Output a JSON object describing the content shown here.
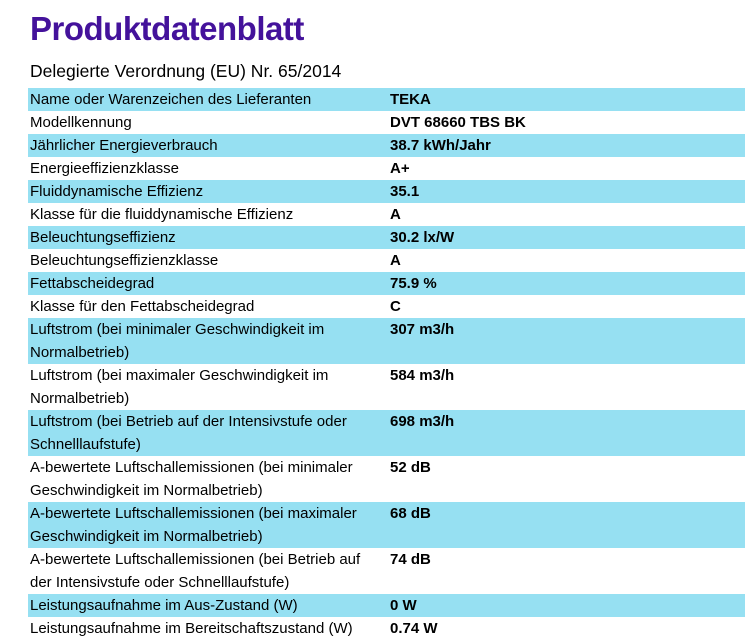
{
  "page": {
    "title": "Produktdatenblatt",
    "subtitle": "Delegierte Verordnung (EU) Nr. 65/2014",
    "title_color": "#44129B",
    "row_highlight_color": "#96E0F2"
  },
  "table": {
    "rows": [
      {
        "label": "Name oder Warenzeichen des Lieferanten",
        "value": "TEKA",
        "highlight": true
      },
      {
        "label": "Modellkennung",
        "value": "DVT 68660 TBS BK",
        "highlight": false
      },
      {
        "label": "Jährlicher Energieverbrauch",
        "value": "38.7 kWh/Jahr",
        "highlight": true
      },
      {
        "label": "Energieeffizienzklasse",
        "value": "A+",
        "highlight": false
      },
      {
        "label": "Fluiddynamische Effizienz",
        "value": "35.1",
        "highlight": true
      },
      {
        "label": "Klasse für die fluiddynamische Effizienz",
        "value": "A",
        "highlight": false
      },
      {
        "label": "Beleuchtungseffizienz",
        "value": "30.2 lx/W",
        "highlight": true
      },
      {
        "label": "Beleuchtungseffizienzklasse",
        "value": "A",
        "highlight": false
      },
      {
        "label": "Fettabscheidegrad",
        "value": "75.9 %",
        "highlight": true
      },
      {
        "label": "Klasse für den Fettabscheidegrad",
        "value": "C",
        "highlight": false
      },
      {
        "label": "Luftstrom (bei minimaler Geschwindigkeit im Normalbetrieb)",
        "value": "307 m3/h",
        "highlight": true
      },
      {
        "label": "Luftstrom (bei maximaler Geschwindigkeit im Normalbetrieb)",
        "value": "584 m3/h",
        "highlight": false
      },
      {
        "label": "Luftstrom (bei Betrieb auf der Intensivstufe oder Schnelllaufstufe)",
        "value": "698 m3/h",
        "highlight": true
      },
      {
        "label": "A-bewertete Luftschallemissionen (bei minimaler Geschwindigkeit im Normalbetrieb)",
        "value": "52 dB",
        "highlight": false
      },
      {
        "label": "A-bewertete Luftschallemissionen (bei maximaler Geschwindigkeit im Normalbetrieb)",
        "value": "68 dB",
        "highlight": true
      },
      {
        "label": "A-bewertete Luftschallemissionen (bei Betrieb auf der Intensivstufe oder Schnelllaufstufe)",
        "value": "74 dB",
        "highlight": false
      },
      {
        "label": "Leistungsaufnahme im Aus-Zustand (W)",
        "value": "0 W",
        "highlight": true
      },
      {
        "label": "Leistungsaufnahme im Bereitschaftszustand (W)",
        "value": "0.74 W",
        "highlight": false
      }
    ]
  }
}
